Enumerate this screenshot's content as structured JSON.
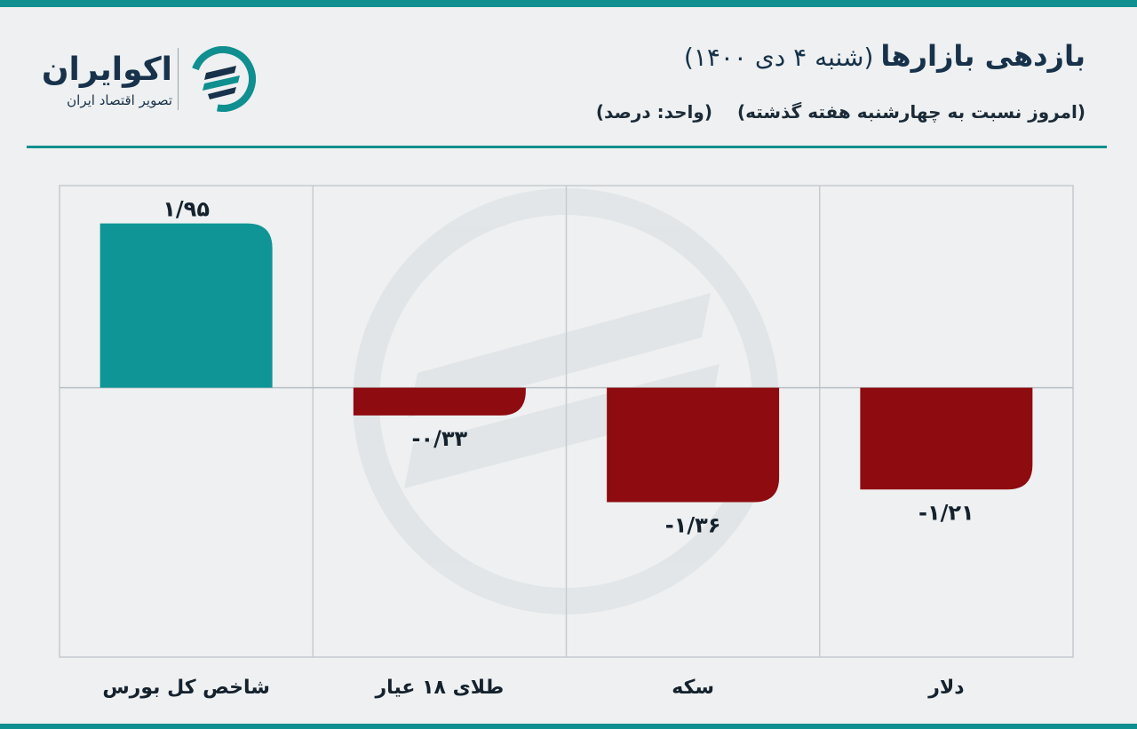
{
  "brand": {
    "name": "اکوایران",
    "tagline": "تصویر اقتصاد ایران",
    "color": "#0f8f8f",
    "dark_color": "#17324a"
  },
  "header": {
    "title_main": "بازدهی بازارها",
    "title_date": "(شنبه ۴ دی ۱۴۰۰)",
    "subtitle_compare": "(امروز نسبت به چهارشنبه هفته گذشته)",
    "subtitle_unit": "(واحد: درصد)"
  },
  "chart_data": {
    "type": "bar",
    "categories": [
      "دلار",
      "سکه",
      "طلای ۱۸ عیار",
      "شاخص کل بورس"
    ],
    "values": [
      -1.21,
      -1.36,
      -0.33,
      1.95
    ],
    "value_labels": [
      "-۱/۲۱",
      "-۱/۳۶",
      "-۰/۳۳",
      "۱/۹۵"
    ],
    "ylim": [
      -3.2,
      2.4
    ],
    "grid": true,
    "colors": {
      "positive": "#0f9595",
      "negative": "#8e0b10"
    }
  }
}
